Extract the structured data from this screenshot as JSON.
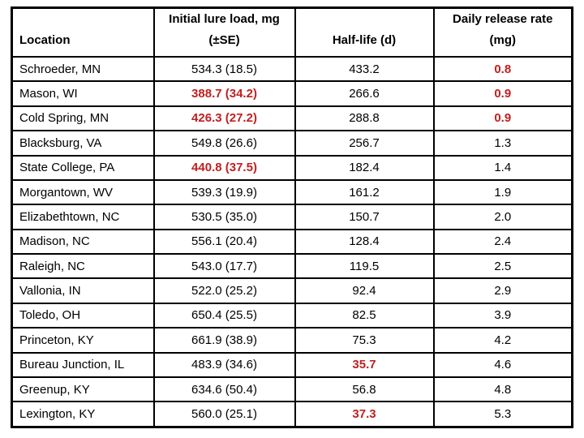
{
  "colors": {
    "highlight_red": "#C02020",
    "text": "#000000",
    "border": "#000000",
    "background": "#FFFFFF"
  },
  "header": {
    "location": "Location",
    "lure_load_line1": "Initial lure load, mg",
    "lure_load_line2": "(±SE)",
    "half_life": "Half-life (d)",
    "release_line1": "Daily release rate",
    "release_line2": "(mg)"
  },
  "chart_data": {
    "type": "table",
    "title": "",
    "columns": [
      "Location",
      "Initial lure load, mg (±SE)",
      "Half-life (d)",
      "Daily release rate (mg)"
    ],
    "note_red_cells": "red_cells lists fields rendered in bold dark-red",
    "rows": [
      {
        "location": "Schroeder, MN",
        "initial_lure_load_se": "534.3 (18.5)",
        "half_life_d": "433.2",
        "daily_release_mg": "0.8",
        "red_cells": [
          "daily_release_mg"
        ]
      },
      {
        "location": "Mason, WI",
        "initial_lure_load_se": "388.7 (34.2)",
        "half_life_d": "266.6",
        "daily_release_mg": "0.9",
        "red_cells": [
          "initial_lure_load_se",
          "daily_release_mg"
        ]
      },
      {
        "location": "Cold Spring, MN",
        "initial_lure_load_se": "426.3 (27.2)",
        "half_life_d": "288.8",
        "daily_release_mg": "0.9",
        "red_cells": [
          "initial_lure_load_se",
          "daily_release_mg"
        ]
      },
      {
        "location": "Blacksburg, VA",
        "initial_lure_load_se": "549.8 (26.6)",
        "half_life_d": "256.7",
        "daily_release_mg": "1.3",
        "red_cells": []
      },
      {
        "location": "State College, PA",
        "initial_lure_load_se": "440.8 (37.5)",
        "half_life_d": "182.4",
        "daily_release_mg": "1.4",
        "red_cells": [
          "initial_lure_load_se"
        ]
      },
      {
        "location": "Morgantown, WV",
        "initial_lure_load_se": "539.3 (19.9)",
        "half_life_d": "161.2",
        "daily_release_mg": "1.9",
        "red_cells": []
      },
      {
        "location": "Elizabethtown, NC",
        "initial_lure_load_se": "530.5 (35.0)",
        "half_life_d": "150.7",
        "daily_release_mg": "2.0",
        "red_cells": []
      },
      {
        "location": "Madison, NC",
        "initial_lure_load_se": "556.1 (20.4)",
        "half_life_d": "128.4",
        "daily_release_mg": "2.4",
        "red_cells": []
      },
      {
        "location": "Raleigh, NC",
        "initial_lure_load_se": "543.0 (17.7)",
        "half_life_d": "119.5",
        "daily_release_mg": "2.5",
        "red_cells": []
      },
      {
        "location": "Vallonia, IN",
        "initial_lure_load_se": "522.0 (25.2)",
        "half_life_d": "92.4",
        "daily_release_mg": "2.9",
        "red_cells": []
      },
      {
        "location": "Toledo, OH",
        "initial_lure_load_se": "650.4 (25.5)",
        "half_life_d": "82.5",
        "daily_release_mg": "3.9",
        "red_cells": []
      },
      {
        "location": "Princeton, KY",
        "initial_lure_load_se": "661.9 (38.9)",
        "half_life_d": "75.3",
        "daily_release_mg": "4.2",
        "red_cells": []
      },
      {
        "location": "Bureau Junction, IL",
        "initial_lure_load_se": "483.9 (34.6)",
        "half_life_d": "35.7",
        "daily_release_mg": "4.6",
        "red_cells": [
          "half_life_d"
        ]
      },
      {
        "location": "Greenup, KY",
        "initial_lure_load_se": "634.6 (50.4)",
        "half_life_d": "56.8",
        "daily_release_mg": "4.8",
        "red_cells": []
      },
      {
        "location": "Lexington, KY",
        "initial_lure_load_se": "560.0 (25.1)",
        "half_life_d": "37.3",
        "daily_release_mg": "5.3",
        "red_cells": [
          "half_life_d"
        ]
      }
    ]
  }
}
